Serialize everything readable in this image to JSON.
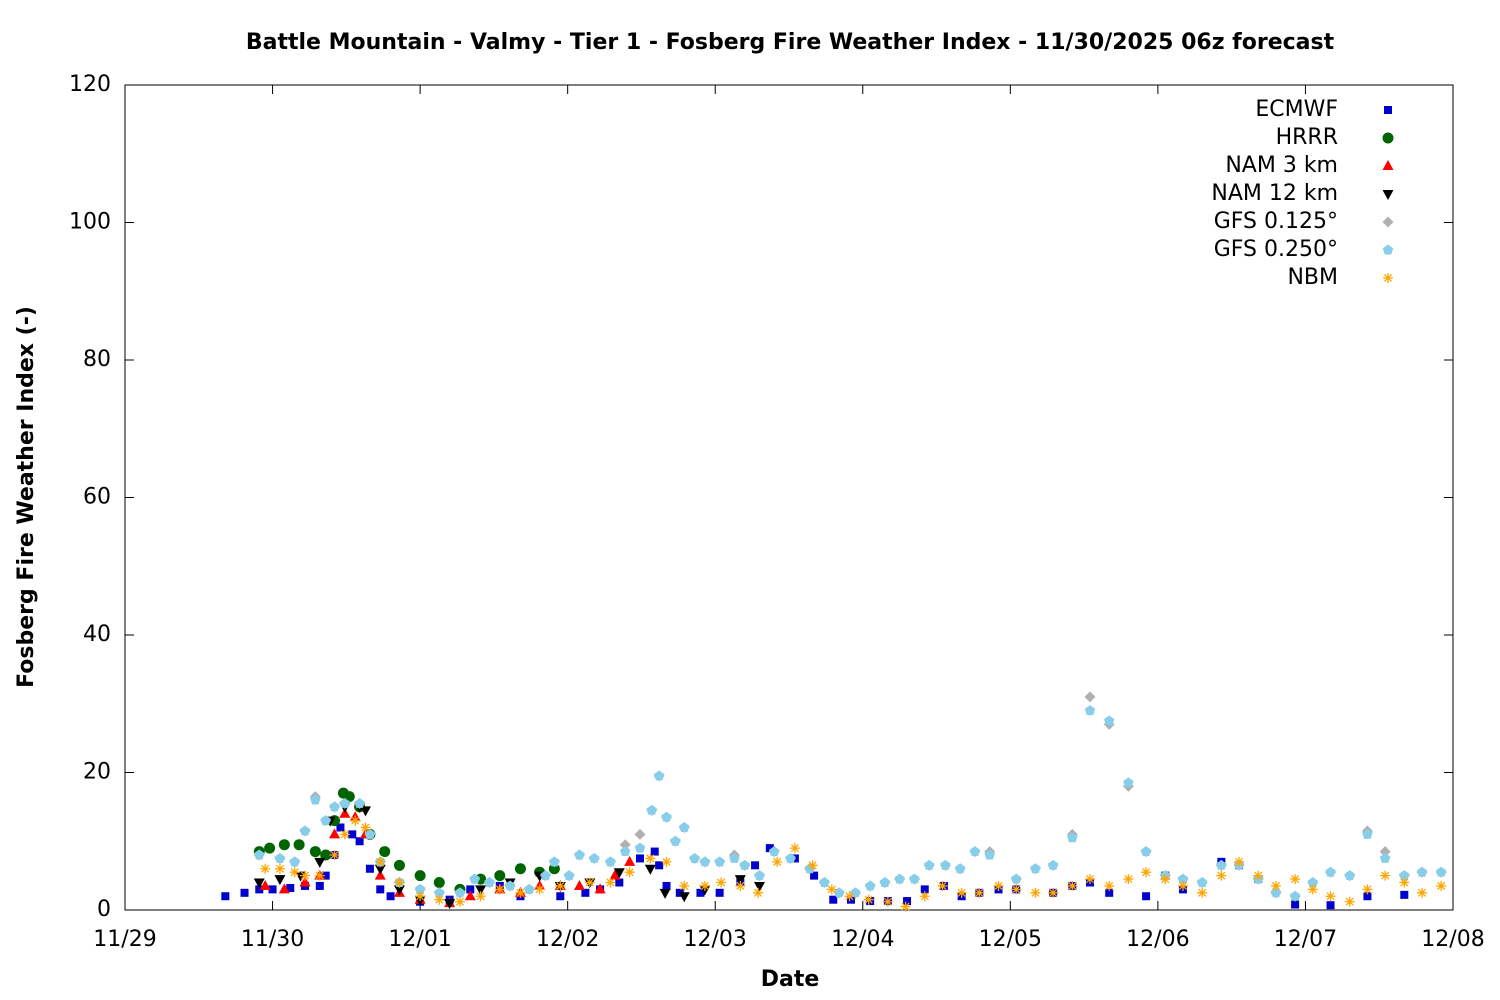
{
  "chart_data": {
    "type": "scatter",
    "title": "Battle Mountain - Valmy - Tier 1 - Fosberg Fire Weather Index - 11/30/2025 06z forecast",
    "x_label": "Date",
    "y_label": "Fosberg Fire Weather Index (-)",
    "xlim": [
      0,
      9
    ],
    "xticks": [
      {
        "value": 0,
        "label": "11/29"
      },
      {
        "value": 1,
        "label": "11/30"
      },
      {
        "value": 2,
        "label": "12/01"
      },
      {
        "value": 3,
        "label": "12/02"
      },
      {
        "value": 4,
        "label": "12/03"
      },
      {
        "value": 5,
        "label": "12/04"
      },
      {
        "value": 6,
        "label": "12/05"
      },
      {
        "value": 7,
        "label": "12/06"
      },
      {
        "value": 8,
        "label": "12/07"
      },
      {
        "value": 9,
        "label": "12/08"
      }
    ],
    "ylim": [
      0,
      120
    ],
    "yticks": [
      0,
      20,
      40,
      60,
      80,
      100,
      120
    ],
    "legend": "top-right",
    "series": [
      {
        "name": "ECMWF",
        "color": "#0000cc",
        "marker": "square",
        "x": [
          0.68,
          0.81,
          0.91,
          1.0,
          1.12,
          1.22,
          1.32,
          1.36,
          1.42,
          1.46,
          1.54,
          1.59,
          1.66,
          1.73,
          1.8,
          2.0,
          2.2,
          2.34,
          2.54,
          2.68,
          2.95,
          3.12,
          3.22,
          3.35,
          3.49,
          3.59,
          3.62,
          3.67,
          3.76,
          3.9,
          4.03,
          4.17,
          4.27,
          4.37,
          4.54,
          4.67,
          4.8,
          4.92,
          5.05,
          5.17,
          5.3,
          5.42,
          5.55,
          5.67,
          5.79,
          5.92,
          6.04,
          6.29,
          6.42,
          6.54,
          6.67,
          6.92,
          7.05,
          7.17,
          7.43,
          7.55,
          7.68,
          7.93,
          8.17,
          8.42,
          8.67
        ],
        "values": [
          2,
          2.5,
          3,
          3,
          3.2,
          3.5,
          3.5,
          5,
          8,
          12,
          11,
          10,
          6,
          3,
          2,
          1.2,
          1.5,
          3,
          3.5,
          2,
          2,
          2.5,
          3,
          4,
          7.5,
          8.5,
          6.5,
          3.5,
          2.5,
          2.5,
          2.5,
          4,
          6.5,
          9,
          7.5,
          5,
          1.5,
          1.5,
          1.3,
          1.3,
          1.3,
          3,
          3.5,
          2,
          2.5,
          3,
          3,
          2.5,
          3.5,
          4,
          2.5,
          2,
          5,
          3,
          7,
          6.5,
          4.5,
          0.8,
          0.7,
          2,
          2.2
        ]
      },
      {
        "name": "HRRR",
        "color": "#006400",
        "marker": "circle",
        "x": [
          0.91,
          0.98,
          1.08,
          1.18,
          1.29,
          1.36,
          1.42,
          1.48,
          1.52,
          1.59,
          1.66,
          1.76,
          1.86,
          2.0,
          2.13,
          2.27,
          2.41,
          2.54,
          2.68,
          2.81,
          2.91
        ],
        "values": [
          8.5,
          9,
          9.5,
          9.5,
          8.5,
          8,
          13,
          17,
          16.5,
          15,
          11,
          8.5,
          6.5,
          5,
          4,
          3,
          4.5,
          5,
          6,
          5.5,
          6
        ]
      },
      {
        "name": "NAM 3 km",
        "color": "#ff0000",
        "marker": "triangle",
        "x": [
          0.95,
          1.08,
          1.22,
          1.32,
          1.42,
          1.49,
          1.56,
          1.63,
          1.73,
          1.86,
          2.0,
          2.2,
          2.34,
          2.54,
          2.68,
          2.81,
          2.95,
          3.08,
          3.22,
          3.32,
          3.42
        ],
        "values": [
          3.5,
          3,
          4,
          5,
          11,
          14,
          13.5,
          11,
          5,
          2.5,
          1.5,
          1,
          2,
          3,
          2.5,
          3.5,
          3.5,
          3.5,
          3,
          5,
          7
        ]
      },
      {
        "name": "NAM 12 km",
        "color": "#000000",
        "marker": "triangle-down",
        "x": [
          0.91,
          1.05,
          1.19,
          1.32,
          1.39,
          1.49,
          1.59,
          1.63,
          1.73,
          1.86,
          2.0,
          2.2,
          2.41,
          2.61,
          2.81,
          2.95,
          3.15,
          3.35,
          3.56,
          3.66,
          3.79,
          3.93,
          4.17,
          4.3
        ],
        "values": [
          4,
          4.5,
          5,
          7,
          13,
          15,
          15,
          14.5,
          6,
          3,
          1.5,
          1,
          3,
          4,
          5,
          3.5,
          4,
          5.5,
          6,
          2.5,
          2,
          3,
          4.5,
          3.5
        ]
      },
      {
        "name": "GFS 0.125°",
        "color": "#b0b0b0",
        "marker": "diamond",
        "x": [
          0.91,
          1.05,
          1.15,
          1.22,
          1.29,
          1.36,
          1.42,
          1.49,
          1.59,
          1.66,
          1.73,
          1.86,
          2.0,
          2.13,
          2.27,
          2.37,
          2.47,
          2.61,
          2.74,
          2.85,
          2.91,
          3.01,
          3.08,
          3.18,
          3.29,
          3.39,
          3.49,
          3.57,
          3.62,
          3.67,
          3.73,
          3.79,
          3.86,
          3.93,
          4.03,
          4.13,
          4.2,
          4.3,
          4.4,
          4.51,
          4.64,
          4.74,
          4.84,
          4.95,
          5.05,
          5.15,
          5.25,
          5.35,
          5.45,
          5.56,
          5.66,
          5.76,
          5.86,
          6.04,
          6.17,
          6.29,
          6.42,
          6.54,
          6.67,
          6.8,
          6.92,
          7.05,
          7.17,
          7.3,
          7.43,
          7.55,
          7.68,
          7.8,
          7.93,
          8.05,
          8.17,
          8.3,
          8.42,
          8.54,
          8.67,
          8.79,
          8.92
        ],
        "values": [
          8,
          7.5,
          7,
          11.5,
          16.5,
          13,
          15,
          15.5,
          15.5,
          11,
          7,
          4,
          3,
          2.5,
          2.5,
          4.5,
          4,
          3.5,
          3,
          5,
          7,
          5,
          8,
          7.5,
          7,
          9.5,
          11,
          14.5,
          19.5,
          13.5,
          10,
          12,
          7.5,
          7,
          7,
          8,
          6.5,
          5,
          8.5,
          7.5,
          6,
          4,
          2.5,
          2.5,
          3.5,
          4,
          4.5,
          4.5,
          6.5,
          6.5,
          6,
          8.5,
          8.5,
          4.5,
          6,
          6.5,
          11,
          31,
          27,
          18,
          8.5,
          5,
          4.5,
          4,
          6.5,
          6.5,
          4.5,
          2.5,
          2,
          4,
          5.5,
          5,
          11.5,
          8.5,
          5,
          5.5,
          5.5
        ]
      },
      {
        "name": "GFS 0.250°",
        "color": "#87ceeb",
        "marker": "pentagon",
        "x": [
          0.91,
          1.05,
          1.15,
          1.22,
          1.29,
          1.36,
          1.42,
          1.49,
          1.59,
          1.66,
          1.73,
          1.86,
          2.0,
          2.13,
          2.27,
          2.37,
          2.47,
          2.61,
          2.74,
          2.85,
          2.91,
          3.01,
          3.08,
          3.18,
          3.29,
          3.39,
          3.49,
          3.57,
          3.62,
          3.67,
          3.73,
          3.79,
          3.86,
          3.93,
          4.03,
          4.13,
          4.2,
          4.3,
          4.4,
          4.51,
          4.64,
          4.74,
          4.84,
          4.95,
          5.05,
          5.15,
          5.25,
          5.35,
          5.45,
          5.56,
          5.66,
          5.76,
          5.86,
          6.04,
          6.17,
          6.29,
          6.42,
          6.54,
          6.67,
          6.8,
          6.92,
          7.05,
          7.17,
          7.3,
          7.43,
          7.55,
          7.68,
          7.8,
          7.93,
          8.05,
          8.17,
          8.3,
          8.42,
          8.54,
          8.67,
          8.79,
          8.92
        ],
        "values": [
          8,
          7.5,
          7,
          11.5,
          16,
          13,
          15,
          15.5,
          15.5,
          11,
          7,
          4,
          3,
          2.5,
          2.5,
          4.5,
          4,
          3.5,
          3,
          5,
          7,
          5,
          8,
          7.5,
          7,
          8.5,
          9,
          14.5,
          19.5,
          13.5,
          10,
          12,
          7.5,
          7,
          7,
          7.5,
          6.5,
          5,
          8.5,
          7.5,
          6,
          4,
          2.5,
          2.5,
          3.5,
          4,
          4.5,
          4.5,
          6.5,
          6.5,
          6,
          8.5,
          8,
          4.5,
          6,
          6.5,
          10.5,
          29,
          27.5,
          18.5,
          8.5,
          5,
          4.5,
          4,
          6.5,
          6.5,
          4.5,
          2.5,
          2,
          4,
          5.5,
          5,
          11,
          7.5,
          5,
          5.5,
          5.5
        ]
      },
      {
        "name": "NBM",
        "color": "#ffa500",
        "marker": "asterisk",
        "x": [
          0.95,
          1.05,
          1.15,
          1.22,
          1.32,
          1.42,
          1.49,
          1.56,
          1.63,
          1.73,
          1.86,
          2.0,
          2.13,
          2.27,
          2.41,
          2.54,
          2.68,
          2.81,
          2.95,
          3.15,
          3.29,
          3.42,
          3.56,
          3.67,
          3.79,
          3.93,
          4.04,
          4.17,
          4.29,
          4.42,
          4.54,
          4.66,
          4.79,
          4.91,
          5.04,
          5.17,
          5.29,
          5.42,
          5.54,
          5.67,
          5.79,
          5.92,
          6.04,
          6.17,
          6.29,
          6.42,
          6.54,
          6.67,
          6.8,
          6.92,
          7.05,
          7.17,
          7.3,
          7.43,
          7.55,
          7.68,
          7.8,
          7.93,
          8.05,
          8.17,
          8.3,
          8.42,
          8.54,
          8.67,
          8.79,
          8.92
        ],
        "values": [
          6,
          6,
          5.5,
          5,
          5,
          8,
          11,
          13,
          12,
          7,
          4,
          2,
          1.5,
          1.2,
          2,
          3,
          2.5,
          3,
          3.5,
          4,
          4,
          5.5,
          7.5,
          7,
          3.5,
          3.5,
          4,
          3.5,
          2.5,
          7,
          9,
          6.5,
          3,
          2,
          1.5,
          1.2,
          0.5,
          2,
          3.5,
          2.5,
          2.5,
          3.5,
          3,
          2.5,
          2.5,
          3.5,
          4.5,
          3.5,
          4.5,
          5.5,
          4.5,
          3.5,
          2.5,
          5,
          7,
          5,
          3.5,
          4.5,
          3,
          2,
          1.2,
          3,
          5,
          4,
          2.5,
          3.5
        ]
      }
    ]
  }
}
